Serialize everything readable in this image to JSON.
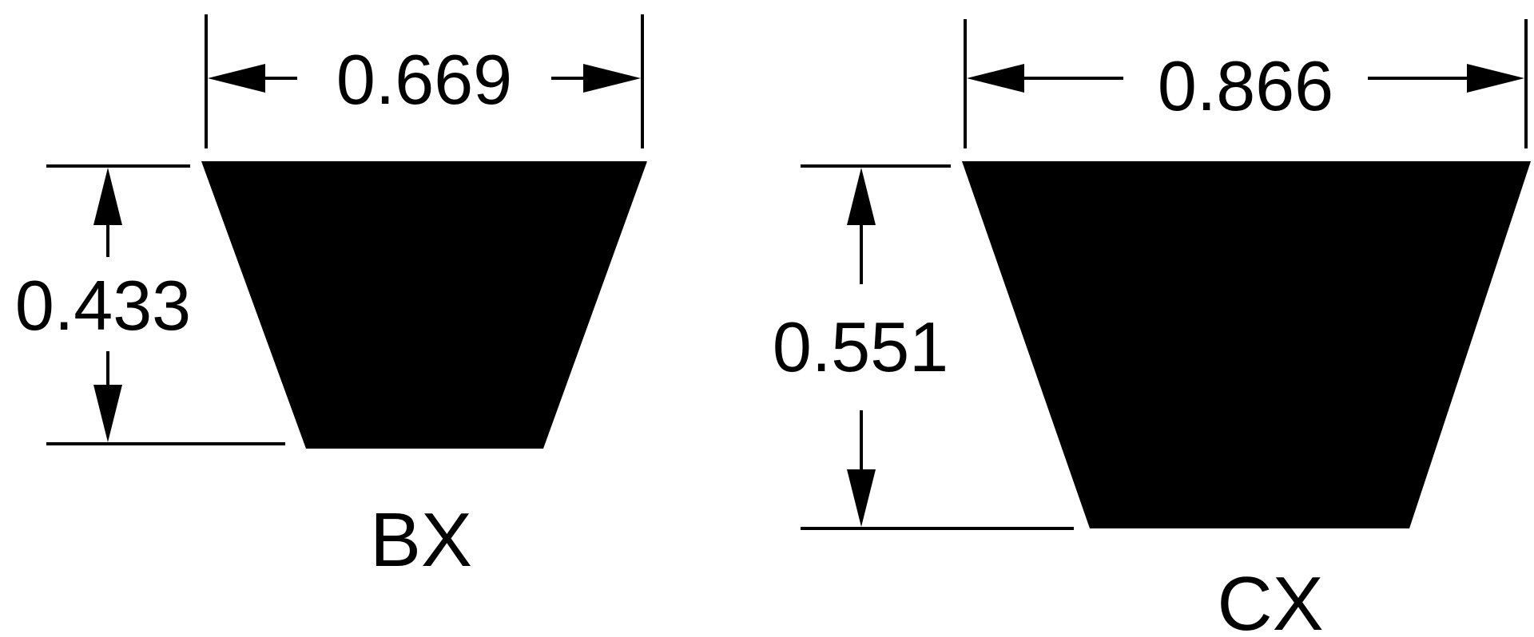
{
  "belts": [
    {
      "name": "BX",
      "top_width": "0.669",
      "height": "0.433"
    },
    {
      "name": "CX",
      "top_width": "0.866",
      "height": "0.551"
    }
  ],
  "colors": {
    "ink": "#000000",
    "background": "#ffffff"
  }
}
